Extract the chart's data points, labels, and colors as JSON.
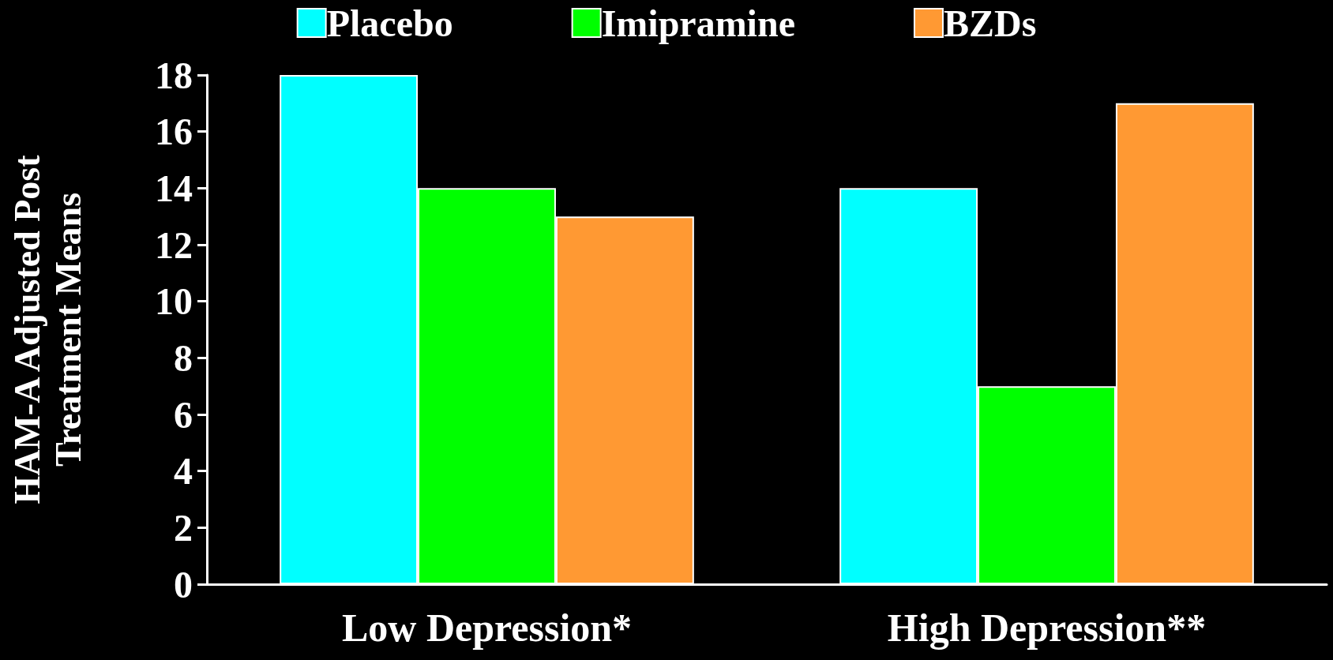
{
  "chart_data": {
    "type": "bar",
    "ylabel": "HAM-A Adjusted Post\nTreatment Means",
    "categories": [
      "Low Depression*",
      "High Depression**"
    ],
    "series": [
      {
        "name": "Placebo",
        "color": "#00ffff",
        "values": [
          18,
          14
        ]
      },
      {
        "name": "Imipramine",
        "color": "#00ff00",
        "values": [
          14,
          7
        ]
      },
      {
        "name": "BZDs",
        "color": "#ff9933",
        "values": [
          13,
          17
        ]
      }
    ],
    "ylim": [
      0,
      18
    ],
    "yticks": [
      0,
      2,
      4,
      6,
      8,
      10,
      12,
      14,
      16,
      18
    ],
    "grid": false,
    "legend": "top"
  }
}
